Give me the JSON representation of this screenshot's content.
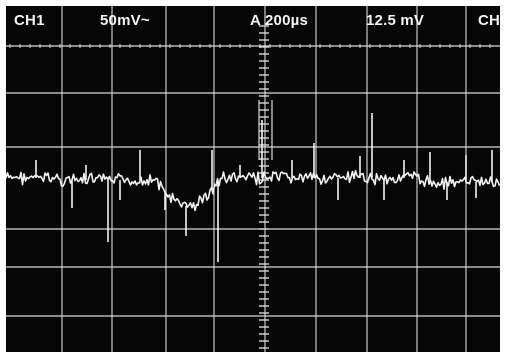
{
  "readouts": {
    "channel": "CH1",
    "volts_per_div": "50mV~",
    "trigger_source": "A",
    "time_per_div": "200µs",
    "trigger_level": "12.5 mV",
    "channel_right": "CH"
  },
  "colors": {
    "screen": "#060606",
    "grid": "#d8d8d8",
    "trace": "#f2f2f2",
    "text": "#f4f4f4"
  }
}
